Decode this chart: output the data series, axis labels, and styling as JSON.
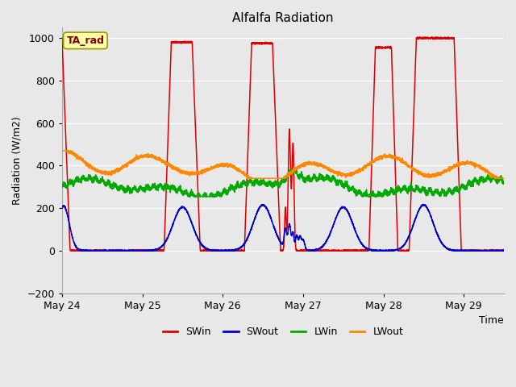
{
  "title": "Alfalfa Radiation",
  "xlabel": "Time",
  "ylabel": "Radiation (W/m2)",
  "ylim": [
    -200,
    1050
  ],
  "xlim_days": [
    0,
    5.5
  ],
  "plot_bg_color": "#e8e8e8",
  "fig_bg_color": "#e8e8e8",
  "colors": {
    "SWin": "#dd0000",
    "SWout": "#0000cc",
    "LWin": "#00aa00",
    "LWout": "#ff8800"
  },
  "annotation_text": "TA_rad",
  "annotation_bg": "#ffffaa",
  "annotation_border": "#999900",
  "x_ticks_labels": [
    "May 24",
    "May 25",
    "May 26",
    "May 27",
    "May 28",
    "May 29"
  ],
  "x_ticks_pos": [
    0,
    1,
    2,
    3,
    4,
    5
  ],
  "y_ticks": [
    -200,
    0,
    200,
    400,
    600,
    800,
    1000
  ]
}
